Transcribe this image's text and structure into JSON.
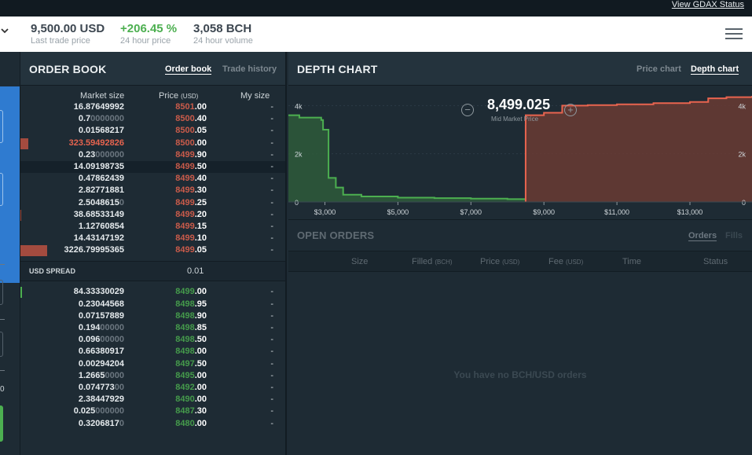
{
  "topbar": {
    "status_link": "View GDAX Status"
  },
  "ticker": {
    "last_price": "9,500.00 USD",
    "last_price_label": "Last trade price",
    "change": "+206.45 %",
    "change_label": "24 hour price",
    "volume": "3,058 BCH",
    "volume_label": "24 hour volume"
  },
  "left_strip": {
    "value": "0"
  },
  "orderbook": {
    "title": "ORDER BOOK",
    "tabs": [
      "Order book",
      "Trade history"
    ],
    "columns": {
      "size": "Market size",
      "price": "Price",
      "price_unit": "(USD)",
      "mine": "My size"
    },
    "asks": [
      {
        "size_bold": "16.87649992",
        "size_dim": "",
        "price_a": "8501",
        "price_b": ".00",
        "mine": "-",
        "bar": 0
      },
      {
        "size_bold": "0.7",
        "size_dim": "0000000",
        "price_a": "8500",
        "price_b": ".40",
        "mine": "-",
        "bar": 0
      },
      {
        "size_bold": "0.01568217",
        "size_dim": "",
        "price_a": "8500",
        "price_b": ".05",
        "mine": "-",
        "bar": 0
      },
      {
        "size_bold": "323.59492826",
        "size_dim": "",
        "price_a": "8500",
        "price_b": ".00",
        "mine": "-",
        "bar": 10,
        "red": true
      },
      {
        "size_bold": "0.23",
        "size_dim": "000000",
        "price_a": "8499",
        "price_b": ".90",
        "mine": "-",
        "bar": 0
      },
      {
        "size_bold": "14.09198735",
        "size_dim": "",
        "price_a": "8499",
        "price_b": ".50",
        "mine": "-",
        "bar": 0,
        "hl": true
      },
      {
        "size_bold": "0.47862439",
        "size_dim": "",
        "price_a": "8499",
        "price_b": ".40",
        "mine": "-",
        "bar": 0
      },
      {
        "size_bold": "2.82771881",
        "size_dim": "",
        "price_a": "8499",
        "price_b": ".30",
        "mine": "-",
        "bar": 0
      },
      {
        "size_bold": "2.5048615",
        "size_dim": "0",
        "price_a": "8499",
        "price_b": ".25",
        "mine": "-",
        "bar": 0
      },
      {
        "size_bold": "38.68533149",
        "size_dim": "",
        "price_a": "8499",
        "price_b": ".20",
        "mine": "-",
        "bar": 1
      },
      {
        "size_bold": "1.12760854",
        "size_dim": "",
        "price_a": "8499",
        "price_b": ".15",
        "mine": "-",
        "bar": 0
      },
      {
        "size_bold": "14.43147192",
        "size_dim": "",
        "price_a": "8499",
        "price_b": ".10",
        "mine": "-",
        "bar": 0
      },
      {
        "size_bold": "3226.79995365",
        "size_dim": "",
        "price_a": "8499",
        "price_b": ".05",
        "mine": "-",
        "bar": 34
      }
    ],
    "spread_label": "USD SPREAD",
    "spread_value": "0.01",
    "bids": [
      {
        "size_bold": "84.33330029",
        "size_dim": "",
        "price_a": "8499",
        "price_b": ".00",
        "mine": "-",
        "bar": 2
      },
      {
        "size_bold": "0.23044568",
        "size_dim": "",
        "price_a": "8498",
        "price_b": ".95",
        "mine": "-",
        "bar": 0
      },
      {
        "size_bold": "0.07157889",
        "size_dim": "",
        "price_a": "8498",
        "price_b": ".90",
        "mine": "-",
        "bar": 0
      },
      {
        "size_bold": "0.194",
        "size_dim": "00000",
        "price_a": "8498",
        "price_b": ".85",
        "mine": "-",
        "bar": 0
      },
      {
        "size_bold": "0.096",
        "size_dim": "00000",
        "price_a": "8498",
        "price_b": ".50",
        "mine": "-",
        "bar": 0
      },
      {
        "size_bold": "0.66380917",
        "size_dim": "",
        "price_a": "8498",
        "price_b": ".00",
        "mine": "-",
        "bar": 0
      },
      {
        "size_bold": "0.00294204",
        "size_dim": "",
        "price_a": "8497",
        "price_b": ".50",
        "mine": "-",
        "bar": 0
      },
      {
        "size_bold": "1.2665",
        "size_dim": "0000",
        "price_a": "8495",
        "price_b": ".00",
        "mine": "-",
        "bar": 0
      },
      {
        "size_bold": "0.074773",
        "size_dim": "00",
        "price_a": "8492",
        "price_b": ".00",
        "mine": "-",
        "bar": 0
      },
      {
        "size_bold": "2.38447929",
        "size_dim": "",
        "price_a": "8490",
        "price_b": ".00",
        "mine": "-",
        "bar": 0
      },
      {
        "size_bold": "0.025",
        "size_dim": "000000",
        "price_a": "8487",
        "price_b": ".30",
        "mine": "-",
        "bar": 0
      },
      {
        "size_bold": "0.3206817",
        "size_dim": "0",
        "price_a": "8480",
        "price_b": ".00",
        "mine": "-",
        "bar": 0
      }
    ]
  },
  "depth": {
    "title": "DEPTH CHART",
    "tabs": [
      "Price chart",
      "Depth chart"
    ],
    "mid_price": "8,499.025",
    "mid_label": "Mid Market Price",
    "colors": {
      "bid": "#4caf50",
      "ask": "#e8644f"
    }
  },
  "chart_data": {
    "type": "area",
    "xlim": [
      2000,
      14700
    ],
    "ylim": [
      0,
      4500
    ],
    "x_ticks": [
      3000,
      5000,
      7000,
      9000,
      11000,
      13000
    ],
    "x_tick_labels": [
      "$3,000",
      "$5,000",
      "$7,000",
      "$9,000",
      "$11,000",
      "$13,000"
    ],
    "y_ticks": [
      0,
      2000,
      4000
    ],
    "y_tick_labels": [
      "0",
      "2k",
      "4k"
    ],
    "series": [
      {
        "side": "bids",
        "x": [
          2000,
          2300,
          2900,
          2950,
          3100,
          3300,
          3500,
          4000,
          5000,
          6000,
          7000,
          8000,
          8499
        ],
        "y": [
          3600,
          3500,
          3400,
          3000,
          1000,
          600,
          300,
          230,
          180,
          160,
          140,
          120,
          84
        ]
      },
      {
        "side": "asks",
        "x": [
          8499,
          8500,
          9000,
          9300,
          9500,
          9800,
          10200,
          11000,
          12000,
          13000,
          13500,
          14000,
          14700
        ],
        "y": [
          3226,
          3600,
          3700,
          3700,
          4000,
          4000,
          4020,
          4050,
          4100,
          4150,
          4300,
          4350,
          4400
        ]
      }
    ]
  },
  "open_orders": {
    "title": "OPEN ORDERS",
    "tabs": [
      "Orders",
      "Fills"
    ],
    "columns": [
      {
        "label": "Size",
        "unit": ""
      },
      {
        "label": "Filled",
        "unit": "(BCH)"
      },
      {
        "label": "Price",
        "unit": "(USD)"
      },
      {
        "label": "Fee",
        "unit": "(USD)"
      },
      {
        "label": "Time",
        "unit": ""
      },
      {
        "label": "Status",
        "unit": ""
      }
    ],
    "empty_message": "You have no BCH/USD orders"
  }
}
